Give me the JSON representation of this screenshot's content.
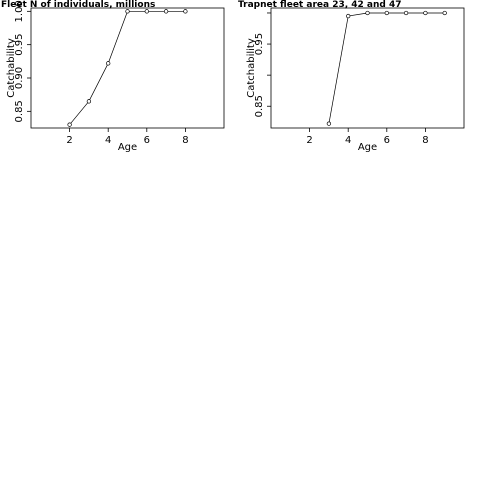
{
  "chart_data": [
    {
      "type": "line",
      "title": "Fleet   N of individuals, millions",
      "xlabel": "Age",
      "ylabel": "Catchability",
      "xlim": [
        0,
        10
      ],
      "ylim": [
        0.825,
        1.005
      ],
      "xticks": [
        2,
        4,
        6,
        8
      ],
      "yticks": [
        0.85,
        0.9,
        0.95,
        1.0
      ],
      "ytick_labels": [
        "0.85",
        "0.90",
        "0.95",
        "1.00"
      ],
      "grid": false,
      "series": [
        {
          "x": [
            2,
            3,
            4,
            5,
            6,
            7,
            8
          ],
          "y": [
            0.83,
            0.865,
            0.922,
            1.0,
            1.0,
            1.0,
            1.0
          ]
        }
      ]
    },
    {
      "type": "line",
      "title": "Trapnet fleet area 23, 42 and 47",
      "xlabel": "Age",
      "ylabel": "Catchability",
      "xlim": [
        0,
        10
      ],
      "ylim": [
        0.815,
        1.008
      ],
      "xticks": [
        2,
        4,
        6,
        8
      ],
      "yticks": [
        0.85,
        0.9,
        0.95,
        1.0
      ],
      "ytick_labels": [
        "0.85",
        "",
        "0.95",
        ""
      ],
      "grid": false,
      "series": [
        {
          "x": [
            3,
            4,
            5,
            6,
            7,
            8,
            9
          ],
          "y": [
            0.822,
            0.995,
            1.0,
            1.0,
            1.0,
            1.0,
            1.0
          ]
        }
      ]
    }
  ]
}
